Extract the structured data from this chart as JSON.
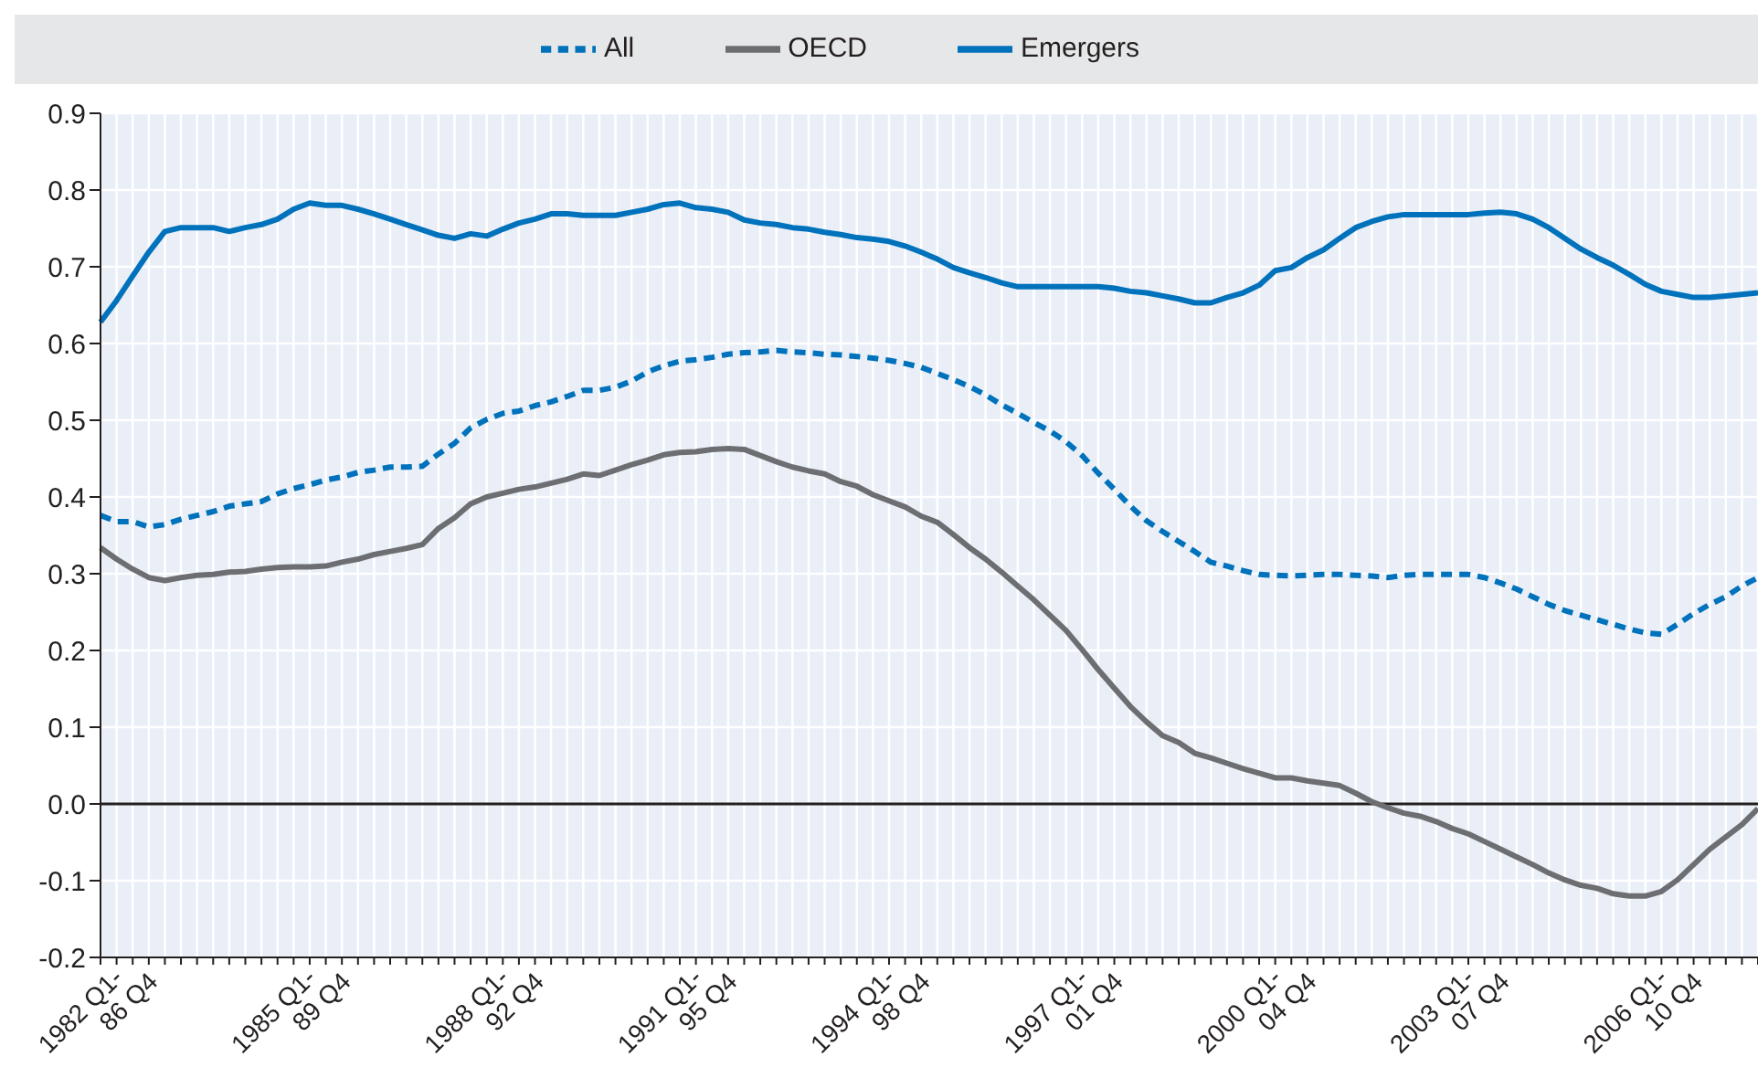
{
  "chart_data": {
    "type": "line",
    "categories": [
      "1982 Q1-86 Q4",
      null,
      null,
      null,
      null,
      null,
      null,
      null,
      null,
      null,
      null,
      null,
      "1985 Q1-89 Q4",
      null,
      null,
      null,
      null,
      null,
      null,
      null,
      null,
      null,
      null,
      null,
      "1988 Q1-92 Q4",
      null,
      null,
      null,
      null,
      null,
      null,
      null,
      null,
      null,
      null,
      null,
      "1991 Q1-95 Q4",
      null,
      null,
      null,
      null,
      null,
      null,
      null,
      null,
      null,
      null,
      null,
      "1994 Q1-98 Q4",
      null,
      null,
      null,
      null,
      null,
      null,
      null,
      null,
      null,
      null,
      null,
      "1997 Q1-01 Q4",
      null,
      null,
      null,
      null,
      null,
      null,
      null,
      null,
      null,
      null,
      null,
      "2000 Q1-04 Q4",
      null,
      null,
      null,
      null,
      null,
      null,
      null,
      null,
      null,
      null,
      null,
      "2003 Q1-07 Q4",
      null,
      null,
      null,
      null,
      null,
      null,
      null,
      null,
      null,
      null,
      null,
      "2006 Q1-10 Q4",
      null,
      null,
      null,
      null,
      null,
      null,
      null
    ],
    "series": [
      {
        "name": "All",
        "color": "#0072bc",
        "line_style": "dashed",
        "values": [
          0.376,
          0.368,
          0.368,
          0.361,
          0.364,
          0.371,
          0.376,
          0.381,
          0.388,
          0.391,
          0.394,
          0.404,
          0.411,
          0.416,
          0.422,
          0.426,
          0.432,
          0.435,
          0.439,
          0.439,
          0.44,
          0.456,
          0.47,
          0.49,
          0.501,
          0.509,
          0.512,
          0.519,
          0.524,
          0.531,
          0.539,
          0.539,
          0.543,
          0.551,
          0.563,
          0.571,
          0.577,
          0.579,
          0.582,
          0.586,
          0.588,
          0.589,
          0.591,
          0.589,
          0.588,
          0.586,
          0.585,
          0.583,
          0.581,
          0.578,
          0.574,
          0.569,
          0.561,
          0.553,
          0.544,
          0.533,
          0.52,
          0.509,
          0.497,
          0.486,
          0.472,
          0.454,
          0.431,
          0.41,
          0.388,
          0.369,
          0.355,
          0.342,
          0.329,
          0.315,
          0.31,
          0.304,
          0.299,
          0.298,
          0.297,
          0.298,
          0.299,
          0.299,
          0.298,
          0.297,
          0.295,
          0.298,
          0.299,
          0.299,
          0.299,
          0.299,
          0.295,
          0.288,
          0.28,
          0.27,
          0.26,
          0.252,
          0.246,
          0.24,
          0.234,
          0.228,
          0.223,
          0.221,
          0.234,
          0.248,
          0.26,
          0.27,
          0.284,
          0.295
        ]
      },
      {
        "name": "OECD",
        "color": "#6d6e71",
        "line_style": "solid",
        "values": [
          0.334,
          0.319,
          0.306,
          0.295,
          0.291,
          0.295,
          0.298,
          0.299,
          0.302,
          0.303,
          0.306,
          0.308,
          0.309,
          0.309,
          0.31,
          0.315,
          0.319,
          0.325,
          0.329,
          0.333,
          0.338,
          0.359,
          0.373,
          0.391,
          0.4,
          0.405,
          0.41,
          0.413,
          0.418,
          0.423,
          0.43,
          0.428,
          0.435,
          0.442,
          0.448,
          0.455,
          0.458,
          0.459,
          0.462,
          0.463,
          0.462,
          0.454,
          0.446,
          0.439,
          0.434,
          0.43,
          0.42,
          0.414,
          0.403,
          0.395,
          0.387,
          0.375,
          0.367,
          0.351,
          0.334,
          0.319,
          0.302,
          0.284,
          0.266,
          0.246,
          0.226,
          0.201,
          0.175,
          0.151,
          0.127,
          0.107,
          0.089,
          0.08,
          0.066,
          0.06,
          0.053,
          0.046,
          0.04,
          0.034,
          0.034,
          0.03,
          0.027,
          0.024,
          0.014,
          0.003,
          -0.005,
          -0.012,
          -0.016,
          -0.023,
          -0.032,
          -0.039,
          -0.049,
          -0.059,
          -0.069,
          -0.079,
          -0.09,
          -0.099,
          -0.106,
          -0.11,
          -0.117,
          -0.12,
          -0.12,
          -0.114,
          -0.099,
          -0.079,
          -0.059,
          -0.043,
          -0.027,
          -0.006
        ]
      },
      {
        "name": "Emergers",
        "color": "#0072bc",
        "line_style": "solid",
        "values": [
          0.628,
          0.656,
          0.688,
          0.719,
          0.746,
          0.751,
          0.751,
          0.751,
          0.746,
          0.751,
          0.755,
          0.762,
          0.775,
          0.783,
          0.78,
          0.78,
          0.775,
          0.769,
          0.762,
          0.755,
          0.748,
          0.741,
          0.737,
          0.743,
          0.74,
          0.749,
          0.757,
          0.762,
          0.769,
          0.769,
          0.767,
          0.767,
          0.767,
          0.771,
          0.775,
          0.781,
          0.783,
          0.777,
          0.775,
          0.771,
          0.761,
          0.757,
          0.755,
          0.751,
          0.749,
          0.745,
          0.742,
          0.738,
          0.736,
          0.733,
          0.727,
          0.719,
          0.71,
          0.699,
          0.692,
          0.686,
          0.679,
          0.674,
          0.674,
          0.674,
          0.674,
          0.674,
          0.674,
          0.672,
          0.668,
          0.666,
          0.662,
          0.658,
          0.653,
          0.653,
          0.66,
          0.666,
          0.676,
          0.695,
          0.699,
          0.712,
          0.722,
          0.737,
          0.751,
          0.759,
          0.765,
          0.768,
          0.768,
          0.768,
          0.768,
          0.768,
          0.77,
          0.771,
          0.769,
          0.762,
          0.751,
          0.737,
          0.723,
          0.712,
          0.702,
          0.69,
          0.677,
          0.668,
          0.664,
          0.66,
          0.66,
          0.662,
          0.664,
          0.666
        ]
      }
    ],
    "ylim": [
      -0.2,
      0.9
    ],
    "yticks": [
      {
        "value": -0.2,
        "label": "-0.2"
      },
      {
        "value": -0.1,
        "label": "-0.1"
      },
      {
        "value": 0,
        "label": "0.0"
      },
      {
        "value": 0.1,
        "label": "0.1"
      },
      {
        "value": 0.2,
        "label": "0.2"
      },
      {
        "value": 0.3,
        "label": "0.3"
      },
      {
        "value": 0.4,
        "label": "0.4"
      },
      {
        "value": 0.5,
        "label": "0.5"
      },
      {
        "value": 0.6,
        "label": "0.6"
      },
      {
        "value": 0.7,
        "label": "0.7"
      },
      {
        "value": 0.8,
        "label": "0.8"
      },
      {
        "value": 0.9,
        "label": "0.9"
      }
    ],
    "ref_lines": [
      {
        "axis": "y",
        "value": 0,
        "color": "#231f20"
      }
    ],
    "grid": true,
    "legend": "top",
    "marker": "none"
  }
}
